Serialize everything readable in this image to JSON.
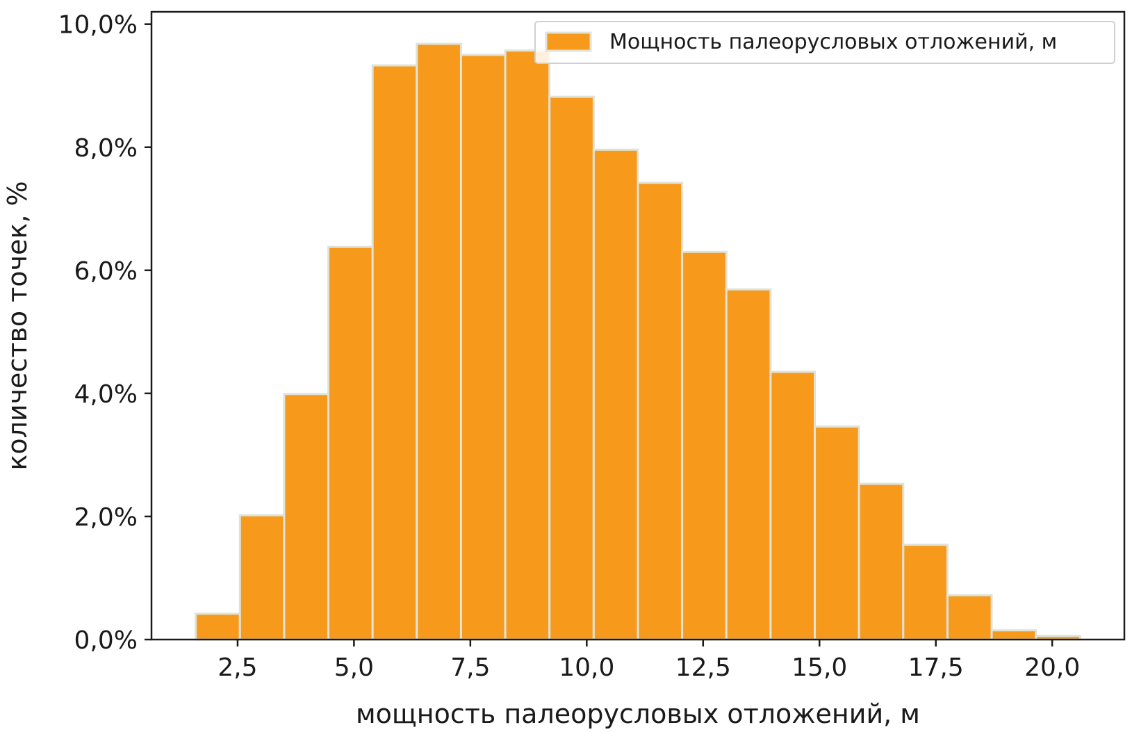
{
  "chart_data": {
    "type": "bar",
    "bin_edges": [
      1.6,
      2.55,
      3.5,
      4.45,
      5.4,
      6.35,
      7.3,
      8.25,
      9.2,
      10.15,
      11.1,
      12.05,
      13.0,
      13.95,
      14.9,
      15.85,
      16.8,
      17.75,
      18.7,
      19.65,
      20.6
    ],
    "series": [
      {
        "name": "Мощность палеорусловых отложений, м",
        "values": [
          0.42,
          2.02,
          3.99,
          6.38,
          9.33,
          9.68,
          9.5,
          9.57,
          8.82,
          7.96,
          7.42,
          6.3,
          5.69,
          4.35,
          3.46,
          2.53,
          1.54,
          0.72,
          0.15,
          0.06
        ]
      }
    ],
    "xlabel": "мощность палеорусловых отложений, м",
    "ylabel": "количество точек, %",
    "xlim": [
      0.65,
      21.55
    ],
    "ylim": [
      0,
      10.2
    ],
    "x_ticks": [
      {
        "value": 2.5,
        "label": "2,5"
      },
      {
        "value": 5.0,
        "label": "5,0"
      },
      {
        "value": 7.5,
        "label": "7,5"
      },
      {
        "value": 10.0,
        "label": "10,0"
      },
      {
        "value": 12.5,
        "label": "12,5"
      },
      {
        "value": 15.0,
        "label": "15,0"
      },
      {
        "value": 17.5,
        "label": "17,5"
      },
      {
        "value": 20.0,
        "label": "20,0"
      }
    ],
    "y_ticks": [
      {
        "value": 0,
        "label": "0,0%"
      },
      {
        "value": 2,
        "label": "2,0%"
      },
      {
        "value": 4,
        "label": "4,0%"
      },
      {
        "value": 6,
        "label": "6,0%"
      },
      {
        "value": 8,
        "label": "8,0%"
      },
      {
        "value": 10,
        "label": "10,0%"
      }
    ],
    "legend_position": "top-right",
    "grid": false,
    "colors": {
      "bar_fill": "#f79a1b",
      "bar_edge": "#dfe3d8",
      "axis": "#1a1a1a",
      "legend_border": "#d0d0d0"
    }
  }
}
